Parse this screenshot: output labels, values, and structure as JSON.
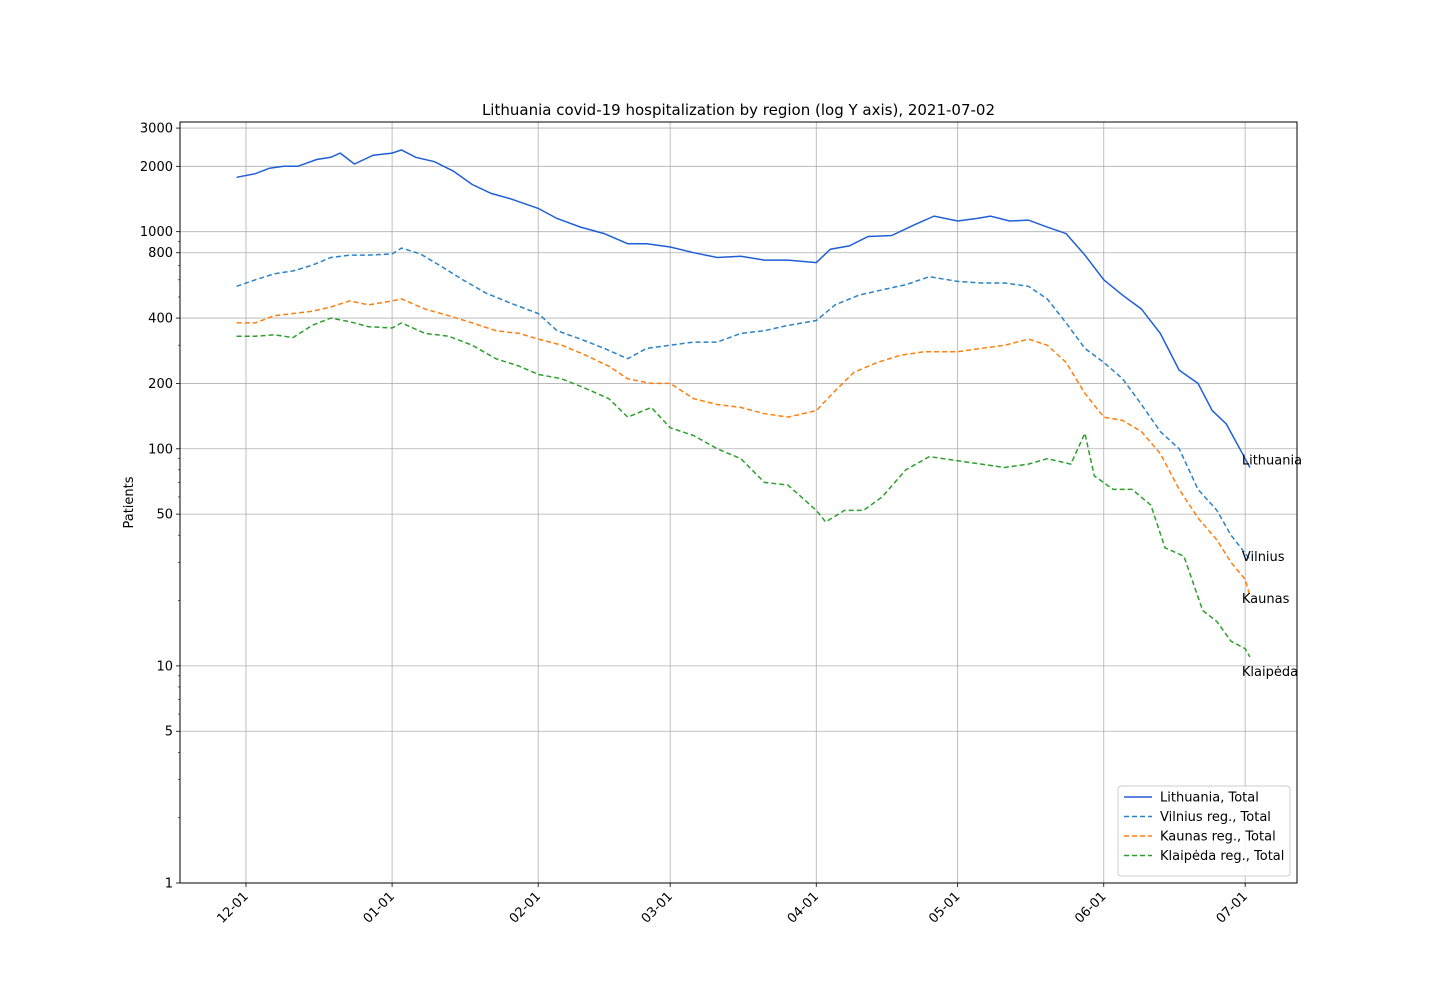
{
  "chart_data": {
    "type": "line",
    "title": "Lithuania covid-19 hospitalization by region (log Y axis), 2021-07-02",
    "xlabel": "",
    "ylabel": "Patients",
    "yscale": "log",
    "ylim": [
      1,
      3200
    ],
    "xlim": [
      "2020-11-17",
      "2021-07-12"
    ],
    "yticks": [
      {
        "value": 1,
        "label": "1"
      },
      {
        "value": 5,
        "label": "5"
      },
      {
        "value": 10,
        "label": "10"
      },
      {
        "value": 50,
        "label": "50"
      },
      {
        "value": 100,
        "label": "100"
      },
      {
        "value": 200,
        "label": "200"
      },
      {
        "value": 400,
        "label": "400"
      },
      {
        "value": 800,
        "label": "800"
      },
      {
        "value": 1000,
        "label": "1000"
      },
      {
        "value": 2000,
        "label": "2000"
      },
      {
        "value": 3000,
        "label": "3000"
      }
    ],
    "xticks": [
      {
        "date": "2020-12-01",
        "label": "12-01"
      },
      {
        "date": "2021-01-01",
        "label": "01-01"
      },
      {
        "date": "2021-02-01",
        "label": "02-01"
      },
      {
        "date": "2021-03-01",
        "label": "03-01"
      },
      {
        "date": "2021-04-01",
        "label": "04-01"
      },
      {
        "date": "2021-05-01",
        "label": "05-01"
      },
      {
        "date": "2021-06-01",
        "label": "06-01"
      },
      {
        "date": "2021-07-01",
        "label": "07-01"
      }
    ],
    "grid": true,
    "legend_position": "lower-right",
    "series": [
      {
        "name": "Lithuania, Total",
        "end_label": "Lithuania",
        "color": "#1f5fd6",
        "dash": "solid",
        "points": [
          [
            "2020-11-29",
            1780
          ],
          [
            "2020-12-03",
            1850
          ],
          [
            "2020-12-06",
            1960
          ],
          [
            "2020-12-09",
            2000
          ],
          [
            "2020-12-12",
            2000
          ],
          [
            "2020-12-16",
            2150
          ],
          [
            "2020-12-19",
            2200
          ],
          [
            "2020-12-21",
            2300
          ],
          [
            "2020-12-24",
            2050
          ],
          [
            "2020-12-28",
            2250
          ],
          [
            "2021-01-01",
            2300
          ],
          [
            "2021-01-03",
            2380
          ],
          [
            "2021-01-06",
            2200
          ],
          [
            "2021-01-10",
            2100
          ],
          [
            "2021-01-14",
            1900
          ],
          [
            "2021-01-18",
            1650
          ],
          [
            "2021-01-22",
            1500
          ],
          [
            "2021-01-26",
            1420
          ],
          [
            "2021-02-01",
            1280
          ],
          [
            "2021-02-05",
            1150
          ],
          [
            "2021-02-10",
            1050
          ],
          [
            "2021-02-15",
            980
          ],
          [
            "2021-02-20",
            880
          ],
          [
            "2021-02-24",
            880
          ],
          [
            "2021-03-01",
            850
          ],
          [
            "2021-03-06",
            800
          ],
          [
            "2021-03-11",
            760
          ],
          [
            "2021-03-16",
            770
          ],
          [
            "2021-03-21",
            740
          ],
          [
            "2021-03-26",
            740
          ],
          [
            "2021-04-01",
            720
          ],
          [
            "2021-04-04",
            830
          ],
          [
            "2021-04-08",
            860
          ],
          [
            "2021-04-12",
            950
          ],
          [
            "2021-04-17",
            960
          ],
          [
            "2021-04-22",
            1080
          ],
          [
            "2021-04-26",
            1180
          ],
          [
            "2021-05-01",
            1120
          ],
          [
            "2021-05-05",
            1150
          ],
          [
            "2021-05-08",
            1180
          ],
          [
            "2021-05-12",
            1120
          ],
          [
            "2021-05-16",
            1130
          ],
          [
            "2021-05-20",
            1050
          ],
          [
            "2021-05-24",
            980
          ],
          [
            "2021-05-28",
            780
          ],
          [
            "2021-06-01",
            600
          ],
          [
            "2021-06-05",
            510
          ],
          [
            "2021-06-09",
            440
          ],
          [
            "2021-06-13",
            340
          ],
          [
            "2021-06-17",
            230
          ],
          [
            "2021-06-21",
            200
          ],
          [
            "2021-06-24",
            150
          ],
          [
            "2021-06-27",
            130
          ],
          [
            "2021-07-01",
            90
          ],
          [
            "2021-07-02",
            82
          ]
        ]
      },
      {
        "name": "Vilnius reg., Total",
        "end_label": "Vilnius",
        "color": "#2b83c6",
        "dash": "5,3",
        "points": [
          [
            "2020-11-29",
            560
          ],
          [
            "2020-12-03",
            600
          ],
          [
            "2020-12-07",
            640
          ],
          [
            "2020-12-11",
            660
          ],
          [
            "2020-12-15",
            700
          ],
          [
            "2020-12-19",
            760
          ],
          [
            "2020-12-23",
            780
          ],
          [
            "2020-12-27",
            780
          ],
          [
            "2021-01-01",
            790
          ],
          [
            "2021-01-03",
            840
          ],
          [
            "2021-01-07",
            790
          ],
          [
            "2021-01-12",
            680
          ],
          [
            "2021-01-16",
            600
          ],
          [
            "2021-01-21",
            520
          ],
          [
            "2021-01-26",
            470
          ],
          [
            "2021-02-01",
            420
          ],
          [
            "2021-02-05",
            350
          ],
          [
            "2021-02-10",
            320
          ],
          [
            "2021-02-15",
            290
          ],
          [
            "2021-02-20",
            260
          ],
          [
            "2021-02-24",
            290
          ],
          [
            "2021-03-01",
            300
          ],
          [
            "2021-03-06",
            310
          ],
          [
            "2021-03-11",
            310
          ],
          [
            "2021-03-16",
            340
          ],
          [
            "2021-03-21",
            350
          ],
          [
            "2021-03-26",
            370
          ],
          [
            "2021-04-01",
            390
          ],
          [
            "2021-04-05",
            460
          ],
          [
            "2021-04-10",
            510
          ],
          [
            "2021-04-15",
            540
          ],
          [
            "2021-04-20",
            570
          ],
          [
            "2021-04-25",
            620
          ],
          [
            "2021-05-01",
            590
          ],
          [
            "2021-05-06",
            580
          ],
          [
            "2021-05-11",
            580
          ],
          [
            "2021-05-16",
            560
          ],
          [
            "2021-05-20",
            490
          ],
          [
            "2021-05-24",
            380
          ],
          [
            "2021-05-28",
            290
          ],
          [
            "2021-06-01",
            250
          ],
          [
            "2021-06-05",
            210
          ],
          [
            "2021-06-09",
            160
          ],
          [
            "2021-06-13",
            120
          ],
          [
            "2021-06-17",
            100
          ],
          [
            "2021-06-21",
            65
          ],
          [
            "2021-06-25",
            52
          ],
          [
            "2021-06-28",
            40
          ],
          [
            "2021-07-01",
            33
          ],
          [
            "2021-07-02",
            31
          ]
        ]
      },
      {
        "name": "Kaunas reg., Total",
        "end_label": "Kaunas",
        "color": "#ff7f0e",
        "dash": "5,3",
        "points": [
          [
            "2020-11-29",
            380
          ],
          [
            "2020-12-03",
            380
          ],
          [
            "2020-12-07",
            410
          ],
          [
            "2020-12-11",
            420
          ],
          [
            "2020-12-15",
            430
          ],
          [
            "2020-12-19",
            450
          ],
          [
            "2020-12-23",
            480
          ],
          [
            "2020-12-27",
            460
          ],
          [
            "2021-01-01",
            480
          ],
          [
            "2021-01-03",
            490
          ],
          [
            "2021-01-08",
            440
          ],
          [
            "2021-01-13",
            410
          ],
          [
            "2021-01-18",
            380
          ],
          [
            "2021-01-23",
            350
          ],
          [
            "2021-01-28",
            340
          ],
          [
            "2021-02-01",
            320
          ],
          [
            "2021-02-06",
            300
          ],
          [
            "2021-02-11",
            270
          ],
          [
            "2021-02-16",
            240
          ],
          [
            "2021-02-20",
            210
          ],
          [
            "2021-02-25",
            200
          ],
          [
            "2021-03-01",
            200
          ],
          [
            "2021-03-06",
            170
          ],
          [
            "2021-03-11",
            160
          ],
          [
            "2021-03-16",
            155
          ],
          [
            "2021-03-21",
            145
          ],
          [
            "2021-03-26",
            140
          ],
          [
            "2021-04-01",
            150
          ],
          [
            "2021-04-05",
            185
          ],
          [
            "2021-04-09",
            225
          ],
          [
            "2021-04-14",
            250
          ],
          [
            "2021-04-19",
            270
          ],
          [
            "2021-04-24",
            280
          ],
          [
            "2021-05-01",
            280
          ],
          [
            "2021-05-06",
            290
          ],
          [
            "2021-05-11",
            300
          ],
          [
            "2021-05-16",
            320
          ],
          [
            "2021-05-20",
            300
          ],
          [
            "2021-05-24",
            250
          ],
          [
            "2021-05-28",
            180
          ],
          [
            "2021-06-01",
            140
          ],
          [
            "2021-06-05",
            135
          ],
          [
            "2021-06-09",
            120
          ],
          [
            "2021-06-13",
            95
          ],
          [
            "2021-06-17",
            65
          ],
          [
            "2021-06-21",
            48
          ],
          [
            "2021-06-25",
            38
          ],
          [
            "2021-06-28",
            30
          ],
          [
            "2021-07-01",
            25
          ],
          [
            "2021-07-02",
            21
          ]
        ]
      },
      {
        "name": "Klaipėda reg., Total",
        "end_label": "Klaipėda",
        "color": "#2ca02c",
        "dash": "5,3",
        "points": [
          [
            "2020-11-29",
            330
          ],
          [
            "2020-12-03",
            330
          ],
          [
            "2020-12-07",
            335
          ],
          [
            "2020-12-11",
            325
          ],
          [
            "2020-12-15",
            370
          ],
          [
            "2020-12-19",
            400
          ],
          [
            "2020-12-23",
            385
          ],
          [
            "2020-12-27",
            365
          ],
          [
            "2021-01-01",
            360
          ],
          [
            "2021-01-03",
            380
          ],
          [
            "2021-01-08",
            340
          ],
          [
            "2021-01-13",
            330
          ],
          [
            "2021-01-18",
            300
          ],
          [
            "2021-01-23",
            260
          ],
          [
            "2021-01-28",
            240
          ],
          [
            "2021-02-01",
            220
          ],
          [
            "2021-02-06",
            210
          ],
          [
            "2021-02-11",
            190
          ],
          [
            "2021-02-16",
            170
          ],
          [
            "2021-02-20",
            140
          ],
          [
            "2021-02-25",
            155
          ],
          [
            "2021-03-01",
            125
          ],
          [
            "2021-03-06",
            115
          ],
          [
            "2021-03-11",
            100
          ],
          [
            "2021-03-16",
            90
          ],
          [
            "2021-03-21",
            70
          ],
          [
            "2021-03-26",
            68
          ],
          [
            "2021-04-01",
            52
          ],
          [
            "2021-04-03",
            46
          ],
          [
            "2021-04-07",
            52
          ],
          [
            "2021-04-11",
            52
          ],
          [
            "2021-04-15",
            60
          ],
          [
            "2021-04-20",
            80
          ],
          [
            "2021-04-25",
            92
          ],
          [
            "2021-05-01",
            88
          ],
          [
            "2021-05-06",
            85
          ],
          [
            "2021-05-11",
            82
          ],
          [
            "2021-05-16",
            85
          ],
          [
            "2021-05-20",
            90
          ],
          [
            "2021-05-25",
            85
          ],
          [
            "2021-05-28",
            118
          ],
          [
            "2021-05-30",
            75
          ],
          [
            "2021-06-03",
            65
          ],
          [
            "2021-06-07",
            65
          ],
          [
            "2021-06-11",
            55
          ],
          [
            "2021-06-14",
            35
          ],
          [
            "2021-06-18",
            32
          ],
          [
            "2021-06-22",
            18
          ],
          [
            "2021-06-25",
            16
          ],
          [
            "2021-06-28",
            13
          ],
          [
            "2021-07-01",
            12
          ],
          [
            "2021-07-02",
            11
          ]
        ]
      }
    ]
  }
}
